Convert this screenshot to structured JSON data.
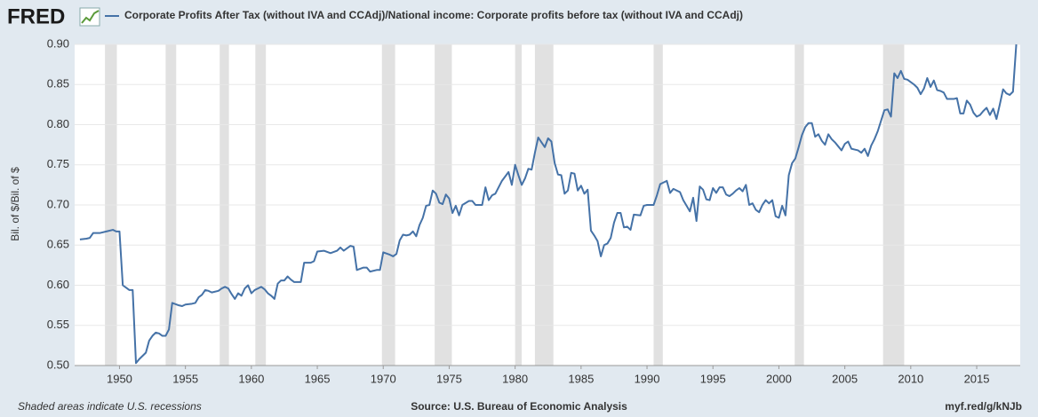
{
  "brand": "FRED",
  "footer": {
    "note": "Shaded areas indicate U.S. recessions",
    "source": "Source: U.S. Bureau of Economic Analysis",
    "link": "myf.red/g/kNJb"
  },
  "chart_data": {
    "type": "line",
    "ylabel": "Bil. of $/Bil. of $",
    "xlim": [
      1946.6,
      2018.3
    ],
    "xticks": [
      1950,
      1955,
      1960,
      1965,
      1970,
      1975,
      1980,
      1985,
      1990,
      1995,
      2000,
      2005,
      2010,
      2015
    ],
    "ylim": [
      0.5,
      0.9
    ],
    "yticks": [
      {
        "value": 0.5,
        "label": "0.50"
      },
      0.55,
      {
        "value": 0.6,
        "label": "0.60"
      },
      0.65,
      {
        "value": 0.7,
        "label": "0.70"
      },
      0.75,
      {
        "value": 0.8,
        "label": "0.80"
      },
      0.85,
      {
        "value": 0.9,
        "label": "0.90"
      }
    ],
    "grid": true,
    "recession_color": "#e1e1e1",
    "recessions": [
      [
        1948.9,
        1949.8
      ],
      [
        1953.5,
        1954.3
      ],
      [
        1957.6,
        1958.3
      ],
      [
        1960.3,
        1961.1
      ],
      [
        1969.9,
        1970.9
      ],
      [
        1973.9,
        1975.2
      ],
      [
        1980.0,
        1980.5
      ],
      [
        1981.5,
        1982.9
      ],
      [
        1990.5,
        1991.2
      ],
      [
        2001.2,
        2001.9
      ],
      [
        2007.9,
        2009.5
      ]
    ],
    "series": [
      {
        "name": "Corporate Profits After Tax (without IVA and CCAdj)/National income: Corporate profits before tax (without IVA and CCAdj)",
        "color": "#4572a7",
        "x": [
          1947.0,
          1947.5,
          1947.75,
          1948.0,
          1948.5,
          1949.0,
          1949.5,
          1949.75,
          1950.0,
          1950.25,
          1950.5,
          1950.75,
          1951.0,
          1951.25,
          1951.5,
          1951.75,
          1952.0,
          1952.25,
          1952.5,
          1952.75,
          1953.0,
          1953.25,
          1953.5,
          1953.75,
          1954.0,
          1954.5,
          1954.75,
          1955.0,
          1955.5,
          1955.75,
          1956.0,
          1956.25,
          1956.5,
          1956.75,
          1957.0,
          1957.5,
          1957.75,
          1958.0,
          1958.25,
          1958.5,
          1958.75,
          1959.0,
          1959.25,
          1959.5,
          1959.75,
          1960.0,
          1960.25,
          1960.5,
          1960.75,
          1961.0,
          1961.25,
          1961.5,
          1961.75,
          1962.0,
          1962.25,
          1962.5,
          1962.75,
          1963.0,
          1963.25,
          1963.75,
          1964.0,
          1964.5,
          1964.75,
          1965.0,
          1965.5,
          1966.0,
          1966.5,
          1966.75,
          1967.0,
          1967.5,
          1967.75,
          1968.0,
          1968.5,
          1968.75,
          1969.0,
          1969.5,
          1969.75,
          1970.0,
          1970.5,
          1970.75,
          1971.0,
          1971.25,
          1971.5,
          1971.75,
          1972.0,
          1972.25,
          1972.5,
          1972.75,
          1973.0,
          1973.25,
          1973.5,
          1973.75,
          1974.0,
          1974.25,
          1974.5,
          1974.75,
          1975.0,
          1975.25,
          1975.5,
          1975.75,
          1976.0,
          1976.5,
          1976.75,
          1977.0,
          1977.5,
          1977.75,
          1978.0,
          1978.25,
          1978.5,
          1979.0,
          1979.5,
          1979.75,
          1980.0,
          1980.25,
          1980.5,
          1980.75,
          1981.0,
          1981.25,
          1981.5,
          1981.75,
          1982.0,
          1982.25,
          1982.5,
          1982.75,
          1983.0,
          1983.25,
          1983.5,
          1983.75,
          1984.0,
          1984.25,
          1984.5,
          1984.75,
          1985.0,
          1985.25,
          1985.5,
          1985.75,
          1986.0,
          1986.25,
          1986.5,
          1986.75,
          1987.0,
          1987.25,
          1987.5,
          1987.75,
          1988.0,
          1988.25,
          1988.5,
          1988.75,
          1989.0,
          1989.5,
          1989.75,
          1990.0,
          1990.5,
          1990.75,
          1991.0,
          1991.5,
          1991.75,
          1992.0,
          1992.5,
          1992.75,
          1993.0,
          1993.25,
          1993.5,
          1993.75,
          1994.0,
          1994.25,
          1994.5,
          1994.75,
          1995.0,
          1995.25,
          1995.5,
          1995.75,
          1996.0,
          1996.25,
          1996.5,
          1996.75,
          1997.0,
          1997.25,
          1997.5,
          1997.75,
          1998.0,
          1998.25,
          1998.5,
          1998.75,
          1999.0,
          1999.25,
          1999.5,
          1999.75,
          2000.0,
          2000.25,
          2000.5,
          2000.75,
          2001.0,
          2001.25,
          2001.5,
          2001.75,
          2002.0,
          2002.25,
          2002.5,
          2002.75,
          2003.0,
          2003.25,
          2003.5,
          2003.75,
          2004.0,
          2004.25,
          2004.5,
          2004.75,
          2005.0,
          2005.25,
          2005.5,
          2005.75,
          2006.0,
          2006.25,
          2006.5,
          2006.75,
          2007.0,
          2007.25,
          2007.5,
          2007.75,
          2008.0,
          2008.25,
          2008.5,
          2008.75,
          2009.0,
          2009.25,
          2009.5,
          2009.75,
          2010.0,
          2010.25,
          2010.5,
          2010.75,
          2011.0,
          2011.25,
          2011.5,
          2011.75,
          2012.0,
          2012.25,
          2012.5,
          2012.75,
          2013.0,
          2013.25,
          2013.5,
          2013.75,
          2014.0,
          2014.25,
          2014.5,
          2014.75,
          2015.0,
          2015.25,
          2015.5,
          2015.75,
          2016.0,
          2016.25,
          2016.5,
          2016.75,
          2017.0,
          2017.25,
          2017.5,
          2017.75,
          2018.0
        ],
        "values": [
          0.657,
          0.658,
          0.659,
          0.665,
          0.665,
          0.667,
          0.669,
          0.667,
          0.667,
          0.6,
          0.597,
          0.594,
          0.594,
          0.503,
          0.508,
          0.512,
          0.516,
          0.531,
          0.537,
          0.541,
          0.54,
          0.537,
          0.537,
          0.545,
          0.578,
          0.575,
          0.574,
          0.576,
          0.577,
          0.578,
          0.585,
          0.588,
          0.594,
          0.593,
          0.591,
          0.593,
          0.596,
          0.598,
          0.596,
          0.589,
          0.583,
          0.59,
          0.587,
          0.596,
          0.6,
          0.59,
          0.594,
          0.596,
          0.598,
          0.595,
          0.59,
          0.587,
          0.583,
          0.602,
          0.606,
          0.606,
          0.611,
          0.607,
          0.604,
          0.604,
          0.628,
          0.628,
          0.63,
          0.642,
          0.643,
          0.64,
          0.643,
          0.647,
          0.643,
          0.649,
          0.648,
          0.619,
          0.622,
          0.622,
          0.617,
          0.619,
          0.619,
          0.641,
          0.638,
          0.636,
          0.639,
          0.656,
          0.663,
          0.662,
          0.663,
          0.667,
          0.661,
          0.675,
          0.684,
          0.699,
          0.7,
          0.718,
          0.714,
          0.703,
          0.701,
          0.713,
          0.708,
          0.69,
          0.699,
          0.687,
          0.7,
          0.705,
          0.705,
          0.7,
          0.7,
          0.722,
          0.706,
          0.712,
          0.714,
          0.73,
          0.741,
          0.725,
          0.75,
          0.737,
          0.725,
          0.733,
          0.745,
          0.744,
          0.765,
          0.784,
          0.778,
          0.772,
          0.783,
          0.779,
          0.752,
          0.738,
          0.737,
          0.714,
          0.718,
          0.74,
          0.739,
          0.718,
          0.724,
          0.714,
          0.719,
          0.668,
          0.662,
          0.655,
          0.636,
          0.65,
          0.652,
          0.659,
          0.678,
          0.69,
          0.69,
          0.672,
          0.673,
          0.669,
          0.688,
          0.687,
          0.699,
          0.7,
          0.7,
          0.712,
          0.726,
          0.73,
          0.715,
          0.72,
          0.716,
          0.706,
          0.699,
          0.692,
          0.709,
          0.68,
          0.723,
          0.719,
          0.707,
          0.706,
          0.721,
          0.715,
          0.722,
          0.722,
          0.713,
          0.711,
          0.714,
          0.718,
          0.721,
          0.717,
          0.725,
          0.7,
          0.702,
          0.694,
          0.691,
          0.7,
          0.706,
          0.702,
          0.706,
          0.686,
          0.684,
          0.699,
          0.687,
          0.737,
          0.752,
          0.758,
          0.772,
          0.787,
          0.797,
          0.802,
          0.802,
          0.785,
          0.788,
          0.78,
          0.775,
          0.788,
          0.782,
          0.778,
          0.773,
          0.768,
          0.776,
          0.779,
          0.77,
          0.769,
          0.768,
          0.765,
          0.77,
          0.761,
          0.774,
          0.782,
          0.792,
          0.805,
          0.818,
          0.819,
          0.81,
          0.864,
          0.858,
          0.867,
          0.857,
          0.856,
          0.853,
          0.85,
          0.846,
          0.838,
          0.845,
          0.858,
          0.847,
          0.855,
          0.843,
          0.842,
          0.84,
          0.832,
          0.832,
          0.832,
          0.833,
          0.814,
          0.814,
          0.83,
          0.825,
          0.815,
          0.81,
          0.812,
          0.817,
          0.821,
          0.812,
          0.82,
          0.807,
          0.825,
          0.844,
          0.839,
          0.837,
          0.841,
          0.9
        ]
      }
    ]
  }
}
